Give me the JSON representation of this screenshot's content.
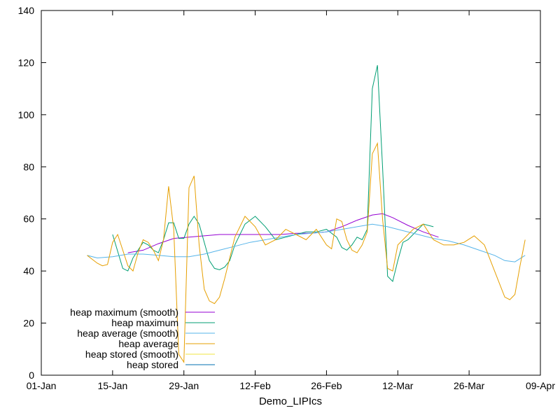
{
  "chart_data": {
    "type": "line",
    "title": "",
    "xlabel": "Demo_LIPIcs",
    "ylabel": "",
    "ylim": [
      0,
      140
    ],
    "xlim": [
      "2023-01-01",
      "2023-04-09"
    ],
    "y_ticks": [
      0,
      20,
      40,
      60,
      80,
      100,
      120,
      140
    ],
    "x_tick_labels": [
      "01-Jan",
      "15-Jan",
      "29-Jan",
      "12-Feb",
      "26-Feb",
      "12-Mar",
      "26-Mar",
      "09-Apr"
    ],
    "x_ticks": [
      "2023-01-01",
      "2023-01-15",
      "2023-01-29",
      "2023-02-12",
      "2023-02-26",
      "2023-03-12",
      "2023-03-26",
      "2023-04-09"
    ],
    "legend_position": "bottom-left",
    "grid": false,
    "series": [
      {
        "name": "heap maximum (smooth)",
        "color": "#9400d3",
        "x": [
          "2023-01-18",
          "2023-01-21",
          "2023-01-24",
          "2023-01-27",
          "2023-01-30",
          "2023-02-02",
          "2023-02-05",
          "2023-02-08",
          "2023-02-11",
          "2023-02-14",
          "2023-02-17",
          "2023-02-20",
          "2023-02-23",
          "2023-02-26",
          "2023-03-01",
          "2023-03-04",
          "2023-03-07",
          "2023-03-09",
          "2023-03-11",
          "2023-03-14",
          "2023-03-17",
          "2023-03-20"
        ],
        "values": [
          47,
          48,
          50.5,
          52.5,
          53,
          53.5,
          54,
          54,
          54,
          54,
          54,
          54.5,
          54.5,
          55,
          57,
          59.5,
          61.5,
          62,
          60.5,
          57.5,
          55,
          53
        ]
      },
      {
        "name": "heap maximum",
        "color": "#009e73",
        "x": [
          "2023-01-15",
          "2023-01-17",
          "2023-01-18",
          "2023-01-19",
          "2023-01-20",
          "2023-01-21",
          "2023-01-22",
          "2023-01-23",
          "2023-01-24",
          "2023-01-25",
          "2023-01-26",
          "2023-01-27",
          "2023-01-28",
          "2023-01-29",
          "2023-01-30",
          "2023-01-31",
          "2023-02-01",
          "2023-02-02",
          "2023-02-03",
          "2023-02-04",
          "2023-02-05",
          "2023-02-06",
          "2023-02-07",
          "2023-02-08",
          "2023-02-10",
          "2023-02-12",
          "2023-02-14",
          "2023-02-16",
          "2023-02-18",
          "2023-02-20",
          "2023-02-22",
          "2023-02-24",
          "2023-02-26",
          "2023-02-28",
          "2023-03-01",
          "2023-03-02",
          "2023-03-03",
          "2023-03-04",
          "2023-03-05",
          "2023-03-06",
          "2023-03-07",
          "2023-03-08",
          "2023-03-09",
          "2023-03-10",
          "2023-03-11",
          "2023-03-12",
          "2023-03-13",
          "2023-03-14",
          "2023-03-15",
          "2023-03-17",
          "2023-03-19"
        ],
        "values": [
          54,
          41,
          40,
          45,
          48,
          51,
          50,
          48,
          47,
          52,
          58.5,
          58.5,
          52.5,
          52.5,
          58,
          61,
          58,
          51,
          44,
          41,
          40.5,
          41.5,
          44,
          50,
          58,
          61,
          57,
          52,
          53,
          54,
          55,
          55,
          56,
          53,
          49,
          48,
          50,
          53,
          52,
          56,
          110,
          119,
          80,
          38,
          36,
          44,
          51,
          52,
          54,
          58,
          57
        ]
      },
      {
        "name": "heap average (smooth)",
        "color": "#56b4e9",
        "x": [
          "2023-01-10",
          "2023-01-12",
          "2023-01-15",
          "2023-01-18",
          "2023-01-21",
          "2023-01-24",
          "2023-01-27",
          "2023-01-30",
          "2023-02-02",
          "2023-02-05",
          "2023-02-08",
          "2023-02-11",
          "2023-02-14",
          "2023-02-17",
          "2023-02-20",
          "2023-02-23",
          "2023-02-26",
          "2023-03-01",
          "2023-03-04",
          "2023-03-07",
          "2023-03-10",
          "2023-03-13",
          "2023-03-16",
          "2023-03-19",
          "2023-03-22",
          "2023-03-25",
          "2023-03-28",
          "2023-03-31",
          "2023-04-02",
          "2023-04-04",
          "2023-04-06"
        ],
        "values": [
          46,
          45,
          45.5,
          46.5,
          46.5,
          46,
          45.5,
          45.5,
          46.5,
          48,
          49.5,
          51,
          52,
          53,
          54,
          54.5,
          55,
          56,
          57,
          58,
          57,
          55.5,
          54,
          52.5,
          51.5,
          50,
          48,
          46,
          44,
          43.5,
          46
        ]
      },
      {
        "name": "heap average",
        "color": "#e69f00",
        "x": [
          "2023-01-10",
          "2023-01-12",
          "2023-01-13",
          "2023-01-14",
          "2023-01-15",
          "2023-01-16",
          "2023-01-17",
          "2023-01-18",
          "2023-01-19",
          "2023-01-20",
          "2023-01-21",
          "2023-01-22",
          "2023-01-23",
          "2023-01-24",
          "2023-01-25",
          "2023-01-26",
          "2023-01-27",
          "2023-01-28",
          "2023-01-29",
          "2023-01-30",
          "2023-01-31",
          "2023-02-01",
          "2023-02-02",
          "2023-02-03",
          "2023-02-04",
          "2023-02-05",
          "2023-02-06",
          "2023-02-07",
          "2023-02-08",
          "2023-02-10",
          "2023-02-12",
          "2023-02-14",
          "2023-02-16",
          "2023-02-18",
          "2023-02-20",
          "2023-02-22",
          "2023-02-24",
          "2023-02-26",
          "2023-02-27",
          "2023-02-28",
          "2023-03-01",
          "2023-03-02",
          "2023-03-03",
          "2023-03-04",
          "2023-03-05",
          "2023-03-06",
          "2023-03-07",
          "2023-03-08",
          "2023-03-09",
          "2023-03-10",
          "2023-03-11",
          "2023-03-12",
          "2023-03-13",
          "2023-03-15",
          "2023-03-17",
          "2023-03-19",
          "2023-03-21",
          "2023-03-23",
          "2023-03-25",
          "2023-03-27",
          "2023-03-29",
          "2023-03-31",
          "2023-04-02",
          "2023-04-03",
          "2023-04-04",
          "2023-04-05",
          "2023-04-06"
        ],
        "values": [
          46,
          43,
          42,
          42.5,
          51,
          54,
          48,
          42,
          40,
          47,
          52,
          51,
          48,
          44,
          52,
          72.5,
          56,
          8,
          5,
          72,
          76.5,
          50,
          33,
          28.5,
          27.5,
          30,
          37,
          45,
          53,
          61,
          57,
          50,
          52,
          56,
          54,
          52,
          56,
          50,
          48.5,
          60,
          59,
          52,
          48,
          47,
          50,
          55,
          85,
          89,
          60,
          41,
          40,
          50,
          52,
          56,
          58,
          52,
          50,
          50,
          51,
          53.5,
          50,
          40,
          30,
          29,
          31,
          42,
          52
        ]
      },
      {
        "name": "heap stored (smooth)",
        "color": "#f0e442",
        "x": [],
        "values": []
      },
      {
        "name": "heap stored",
        "color": "#0072b2",
        "x": [],
        "values": []
      }
    ]
  }
}
